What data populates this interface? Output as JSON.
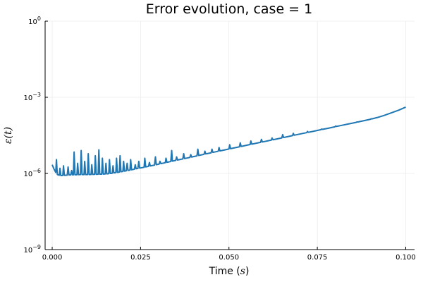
{
  "chart_data": {
    "type": "line",
    "title": "Error evolution, case = 1",
    "xlabel": "Time (s)",
    "xlabel_prefix": "Time (",
    "xlabel_var": "s",
    "xlabel_suffix": ")",
    "ylabel": "ε(t)",
    "xlim": [
      -0.002,
      0.1025
    ],
    "ylim": [
      1e-09,
      1
    ],
    "yscale": "log",
    "grid": true,
    "legend": "none",
    "line_color": "#1f77b4",
    "x_ticks": [
      {
        "value": 0.0,
        "label": "0.000"
      },
      {
        "value": 0.025,
        "label": "0.025"
      },
      {
        "value": 0.05,
        "label": "0.050"
      },
      {
        "value": 0.075,
        "label": "0.075"
      },
      {
        "value": 0.1,
        "label": "0.100"
      }
    ],
    "y_ticks": [
      {
        "value": 1e-09,
        "base": "10",
        "exp": "−9"
      },
      {
        "value": 1e-06,
        "base": "10",
        "exp": "−6"
      },
      {
        "value": 0.001,
        "base": "10",
        "exp": "−3"
      },
      {
        "value": 1,
        "base": "10",
        "exp": "0"
      }
    ],
    "series": [
      {
        "x": [
          0.0,
          0.0005,
          0.001,
          0.0015,
          0.002,
          0.0025,
          0.003,
          0.004,
          0.005,
          0.006,
          0.007,
          0.008,
          0.009,
          0.01,
          0.011,
          0.012,
          0.013,
          0.014,
          0.015,
          0.016,
          0.017,
          0.018,
          0.019,
          0.02,
          0.022,
          0.024,
          0.026,
          0.028,
          0.03,
          0.032,
          0.034,
          0.036,
          0.038,
          0.04,
          0.042,
          0.044,
          0.046,
          0.048,
          0.05,
          0.052,
          0.054,
          0.056,
          0.058,
          0.06,
          0.062,
          0.064,
          0.066,
          0.068,
          0.07,
          0.072,
          0.074,
          0.076,
          0.078,
          0.08,
          0.082,
          0.084,
          0.086,
          0.088,
          0.09,
          0.092,
          0.094,
          0.096,
          0.098,
          0.1
        ],
        "y": [
          2.2e-06,
          1.5e-06,
          1.1e-06,
          9e-07,
          8.5e-07,
          8.2e-07,
          8.3e-07,
          8.5e-07,
          8.7e-07,
          8.8e-07,
          8.9e-07,
          9e-07,
          9e-07,
          9e-07,
          9.1e-07,
          9.2e-07,
          9.3e-07,
          9.4e-07,
          9.5e-07,
          9.8e-07,
          1.02e-06,
          1.08e-06,
          1.13e-06,
          1.2e-06,
          1.35e-06,
          1.55e-06,
          1.75e-06,
          2e-06,
          2.3e-06,
          2.65e-06,
          3.05e-06,
          3.5e-06,
          4e-06,
          4.6e-06,
          5.3e-06,
          6.1e-06,
          7e-06,
          8e-06,
          9.2e-06,
          1.05e-05,
          1.2e-05,
          1.38e-05,
          1.58e-05,
          1.8e-05,
          2.06e-05,
          2.35e-05,
          2.7e-05,
          3.1e-05,
          3.55e-05,
          4.05e-05,
          4.6e-05,
          5.3e-05,
          6e-05,
          6.9e-05,
          7.9e-05,
          9e-05,
          0.000103,
          0.000118,
          0.000136,
          0.00016,
          0.000195,
          0.000245,
          0.00031,
          0.00041
        ]
      }
    ],
    "spikes": [
      {
        "x": 0.0012,
        "y": 3.5e-06
      },
      {
        "x": 0.0022,
        "y": 1.6e-06
      },
      {
        "x": 0.0032,
        "y": 2e-06
      },
      {
        "x": 0.0045,
        "y": 1.8e-06
      },
      {
        "x": 0.0055,
        "y": 1.3e-06
      },
      {
        "x": 0.0062,
        "y": 7e-06
      },
      {
        "x": 0.0072,
        "y": 2.5e-06
      },
      {
        "x": 0.0082,
        "y": 8e-06
      },
      {
        "x": 0.0092,
        "y": 3e-06
      },
      {
        "x": 0.0102,
        "y": 6e-06
      },
      {
        "x": 0.0112,
        "y": 2.2e-06
      },
      {
        "x": 0.0122,
        "y": 5e-06
      },
      {
        "x": 0.0132,
        "y": 8.5e-06
      },
      {
        "x": 0.0142,
        "y": 4e-06
      },
      {
        "x": 0.0152,
        "y": 2.5e-06
      },
      {
        "x": 0.0162,
        "y": 3.5e-06
      },
      {
        "x": 0.0172,
        "y": 2e-06
      },
      {
        "x": 0.0182,
        "y": 4e-06
      },
      {
        "x": 0.0192,
        "y": 5e-06
      },
      {
        "x": 0.0202,
        "y": 3e-06
      },
      {
        "x": 0.0212,
        "y": 2.5e-06
      },
      {
        "x": 0.0222,
        "y": 3.5e-06
      },
      {
        "x": 0.0235,
        "y": 2.2e-06
      },
      {
        "x": 0.0245,
        "y": 3e-06
      },
      {
        "x": 0.0262,
        "y": 4e-06
      },
      {
        "x": 0.0275,
        "y": 2.7e-06
      },
      {
        "x": 0.0292,
        "y": 4.5e-06
      },
      {
        "x": 0.0305,
        "y": 3e-06
      },
      {
        "x": 0.0322,
        "y": 4e-06
      },
      {
        "x": 0.0338,
        "y": 8e-06
      },
      {
        "x": 0.0352,
        "y": 4.5e-06
      },
      {
        "x": 0.0372,
        "y": 6e-06
      },
      {
        "x": 0.0392,
        "y": 5.5e-06
      },
      {
        "x": 0.0412,
        "y": 9e-06
      },
      {
        "x": 0.0432,
        "y": 7.5e-06
      },
      {
        "x": 0.0452,
        "y": 9e-06
      },
      {
        "x": 0.0472,
        "y": 1.05e-05
      },
      {
        "x": 0.0502,
        "y": 1.35e-05
      },
      {
        "x": 0.0532,
        "y": 1.6e-05
      },
      {
        "x": 0.0562,
        "y": 1.9e-05
      },
      {
        "x": 0.0592,
        "y": 2.2e-05
      },
      {
        "x": 0.0622,
        "y": 2.5e-05
      },
      {
        "x": 0.0652,
        "y": 3.4e-05
      },
      {
        "x": 0.0682,
        "y": 3.8e-05
      },
      {
        "x": 0.0722,
        "y": 4.5e-05
      },
      {
        "x": 0.0762,
        "y": 5.6e-05
      },
      {
        "x": 0.0802,
        "y": 7.4e-05
      },
      {
        "x": 0.0862,
        "y": 0.000107
      },
      {
        "x": 0.0902,
        "y": 0.000142
      }
    ]
  }
}
